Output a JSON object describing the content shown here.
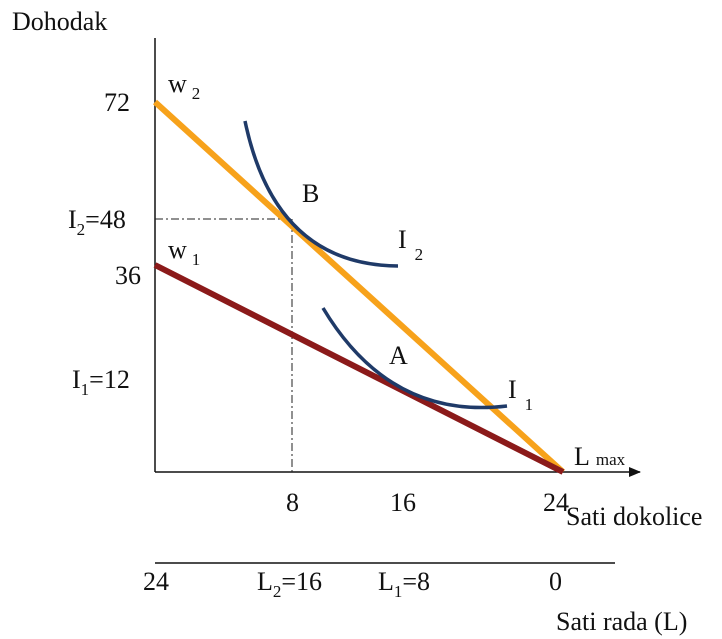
{
  "axes": {
    "y_title": "Dohodak",
    "x_title_leisure": "Sati dokolice",
    "x_title_work": "Sati rada (L)"
  },
  "y_ticks": {
    "t72": "72",
    "t36": "36",
    "i2_main": "I",
    "i2_sub": "2",
    "i2_rest": "=48",
    "i1_main": "I",
    "i1_sub": "1",
    "i1_rest": "=12"
  },
  "leisure_ticks": {
    "t8": "8",
    "t16": "16",
    "t24": "24"
  },
  "work_ticks": {
    "t24": "24",
    "l2_main": "L",
    "l2_sub": "2",
    "l2_rest": "=16",
    "l1_main": "L",
    "l1_sub": "1",
    "l1_rest": "=8",
    "t0": "0"
  },
  "lines": {
    "w2_main": "w",
    "w2_sub": "2",
    "w1_main": "w",
    "w1_sub": "1",
    "lmax_main": "L",
    "lmax_sub": "max",
    "w2_color": "#f7a21b",
    "w1_color": "#8b1a1a",
    "curve_color": "#1f3a68"
  },
  "curves": {
    "i2_main": "I",
    "i2_sub": "2",
    "i1_main": "I",
    "i1_sub": "1"
  },
  "points": {
    "b": "B",
    "a": "A"
  }
}
